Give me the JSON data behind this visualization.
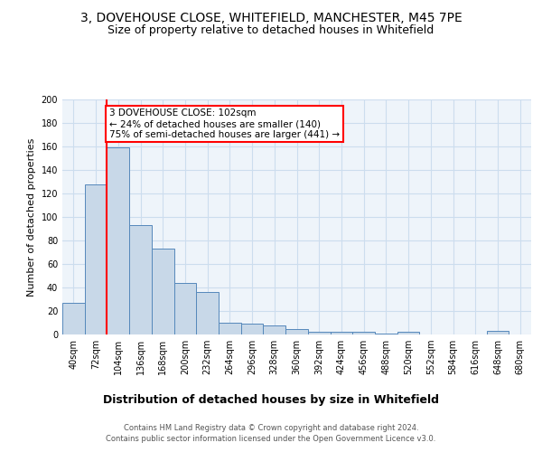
{
  "title_line1": "3, DOVEHOUSE CLOSE, WHITEFIELD, MANCHESTER, M45 7PE",
  "title_line2": "Size of property relative to detached houses in Whitefield",
  "xlabel": "Distribution of detached houses by size in Whitefield",
  "ylabel": "Number of detached properties",
  "footer": "Contains HM Land Registry data © Crown copyright and database right 2024.\nContains public sector information licensed under the Open Government Licence v3.0.",
  "bar_edges": [
    40,
    72,
    104,
    136,
    168,
    200,
    232,
    264,
    296,
    328,
    360,
    392,
    424,
    456,
    488,
    520,
    552,
    584,
    616,
    648,
    680
  ],
  "bar_heights": [
    27,
    128,
    159,
    93,
    73,
    44,
    36,
    10,
    9,
    8,
    5,
    2,
    2,
    2,
    1,
    2,
    0,
    0,
    0,
    3
  ],
  "bar_color": "#c8d8e8",
  "bar_edge_color": "#5588bb",
  "property_line_x": 104,
  "annotation_text": "3 DOVEHOUSE CLOSE: 102sqm\n← 24% of detached houses are smaller (140)\n75% of semi-detached houses are larger (441) →",
  "annotation_box_color": "white",
  "annotation_box_edgecolor": "red",
  "vline_color": "red",
  "ylim": [
    0,
    200
  ],
  "yticks": [
    0,
    20,
    40,
    60,
    80,
    100,
    120,
    140,
    160,
    180,
    200
  ],
  "grid_color": "#ccddee",
  "bg_color": "#eef4fa",
  "title_fontsize": 10,
  "subtitle_fontsize": 9,
  "ylabel_fontsize": 8,
  "xlabel_fontsize": 9,
  "tick_fontsize": 7,
  "footer_fontsize": 6,
  "annotation_fontsize": 7.5
}
